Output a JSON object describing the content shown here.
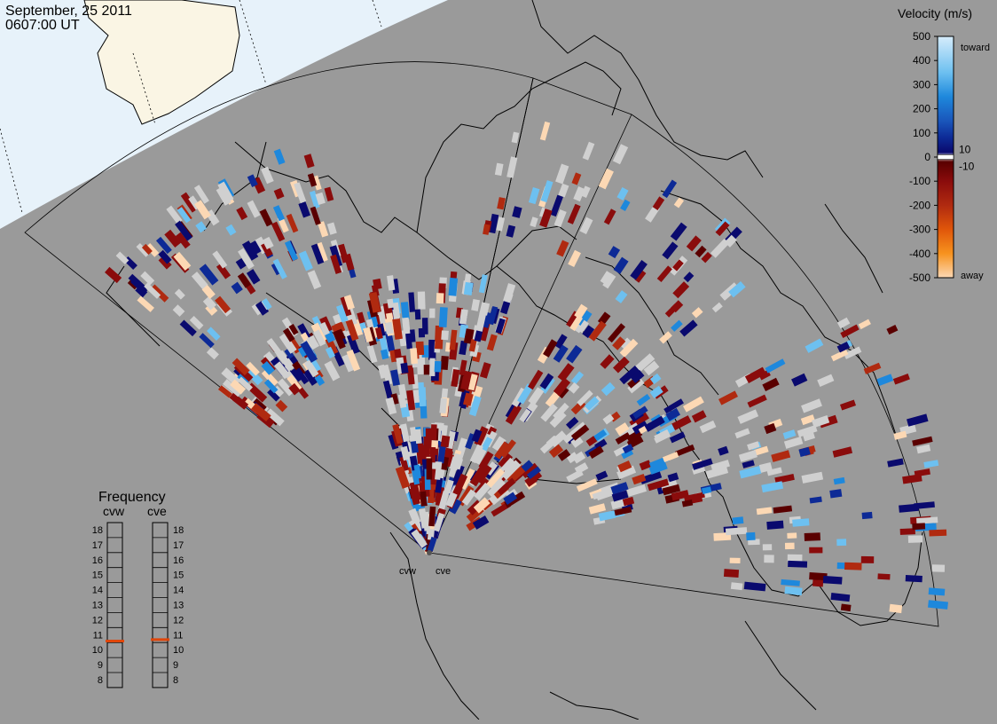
{
  "header": {
    "date": "September, 25 2011",
    "time": "0607:00 UT"
  },
  "colors": {
    "background": "#9a9a9a",
    "daylight": "#e7f2fa",
    "land": "#faf5e4",
    "ground_scatter": "#d0d0d0"
  },
  "velocity_scale": {
    "title": "Velocity (m/s)",
    "top_label": "toward",
    "bottom_label": "away",
    "ticks": [
      {
        "v": 500,
        "label": "500"
      },
      {
        "v": 400,
        "label": "400"
      },
      {
        "v": 300,
        "label": "300"
      },
      {
        "v": 200,
        "label": "200"
      },
      {
        "v": 100,
        "label": "100"
      },
      {
        "v": 0,
        "label": "0"
      },
      {
        "v": -100,
        "label": "-100"
      },
      {
        "v": -200,
        "label": "-200"
      },
      {
        "v": -300,
        "label": "-300"
      },
      {
        "v": -400,
        "label": "-400"
      },
      {
        "v": -500,
        "label": "-500"
      }
    ],
    "right_labels": [
      {
        "v": 10,
        "label": "10"
      },
      {
        "v": -10,
        "label": "-10"
      }
    ],
    "stops": [
      {
        "v": 500,
        "color": "#d6ecfb"
      },
      {
        "v": 350,
        "color": "#6dc0f0"
      },
      {
        "v": 250,
        "color": "#1e88dc"
      },
      {
        "v": 150,
        "color": "#1a56bb"
      },
      {
        "v": 80,
        "color": "#0d2a96"
      },
      {
        "v": 20,
        "color": "#0a0a6e"
      },
      {
        "v": 0,
        "color": "#dddddd"
      },
      {
        "v": -20,
        "color": "#5a0000"
      },
      {
        "v": -100,
        "color": "#8a0c0c"
      },
      {
        "v": -200,
        "color": "#b02a10"
      },
      {
        "v": -300,
        "color": "#e0560a"
      },
      {
        "v": -400,
        "color": "#f7931e"
      },
      {
        "v": -500,
        "color": "#fcd8b4"
      }
    ]
  },
  "frequency": {
    "title": "Frequency",
    "unit_ticks": [
      8,
      9,
      10,
      11,
      12,
      13,
      14,
      15,
      16,
      17,
      18
    ],
    "radars": [
      {
        "name": "cvw",
        "freq_mhz": 10.6
      },
      {
        "name": "cve",
        "freq_mhz": 10.7
      }
    ]
  },
  "radars": [
    {
      "name": "cvw"
    },
    {
      "name": "cve"
    }
  ]
}
